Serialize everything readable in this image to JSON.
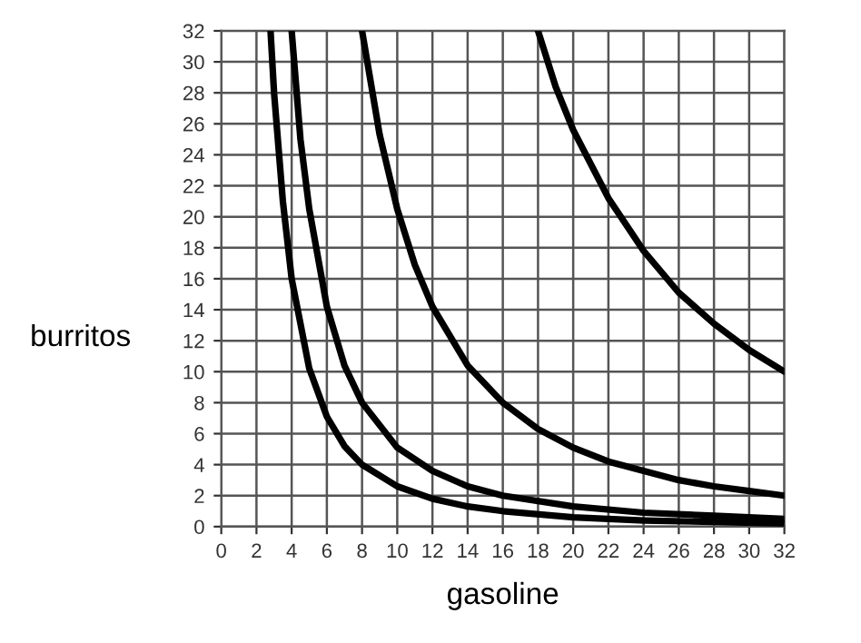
{
  "chart_data": {
    "type": "line",
    "xlabel": "gasoline",
    "ylabel": "burritos",
    "xlim": [
      0,
      32
    ],
    "ylim": [
      0,
      32
    ],
    "xticks": [
      0,
      2,
      4,
      6,
      8,
      10,
      12,
      14,
      16,
      18,
      20,
      22,
      24,
      26,
      28,
      30,
      32
    ],
    "yticks": [
      0,
      2,
      4,
      6,
      8,
      10,
      12,
      14,
      16,
      18,
      20,
      22,
      24,
      26,
      28,
      30,
      32
    ],
    "grid": true,
    "marker": "none",
    "line_style": "solid",
    "series": [
      {
        "color": "#000000",
        "x": [
          2.8,
          3,
          3.5,
          4,
          5,
          6,
          7,
          8,
          10,
          12,
          14,
          16,
          20,
          24,
          28,
          32
        ],
        "values": [
          32,
          28,
          21,
          16,
          10.2,
          7.1,
          5.2,
          4,
          2.6,
          1.8,
          1.3,
          1,
          0.6,
          0.4,
          0.3,
          0.2
        ]
      },
      {
        "color": "#000000",
        "x": [
          4,
          4.5,
          5,
          6,
          7,
          8,
          10,
          12,
          14,
          16,
          20,
          24,
          28,
          32
        ],
        "values": [
          32,
          25,
          20.5,
          14.2,
          10.4,
          8,
          5.1,
          3.6,
          2.6,
          2,
          1.3,
          0.9,
          0.7,
          0.5
        ]
      },
      {
        "color": "#000000",
        "x": [
          8,
          9,
          10,
          11,
          12,
          14,
          16,
          18,
          20,
          22,
          24,
          26,
          28,
          30,
          32
        ],
        "values": [
          32,
          25.3,
          20.5,
          16.9,
          14.2,
          10.4,
          8,
          6.3,
          5.1,
          4.2,
          3.6,
          3,
          2.6,
          2.3,
          2
        ]
      },
      {
        "color": "#000000",
        "x": [
          18,
          19,
          20,
          22,
          24,
          26,
          28,
          30,
          32
        ],
        "values": [
          32,
          28.4,
          25.6,
          21.2,
          17.8,
          15.1,
          13.1,
          11.4,
          10
        ]
      }
    ]
  }
}
